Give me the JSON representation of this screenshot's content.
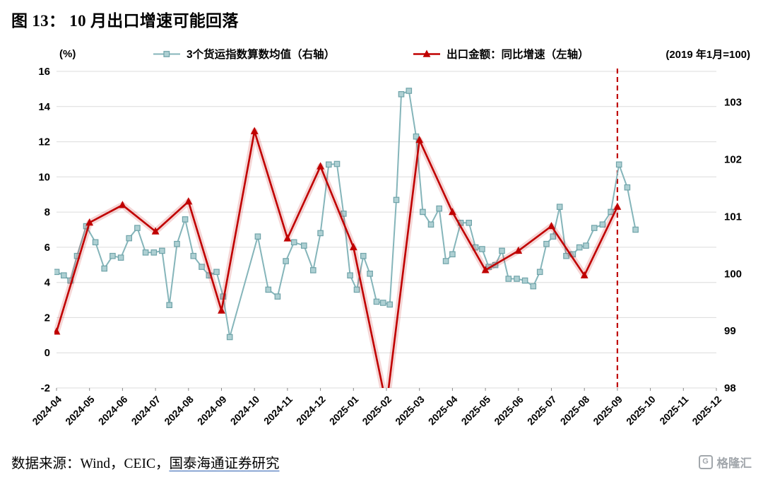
{
  "title": "图 13：  10 月出口增速可能回落",
  "header": {
    "left_unit": "(%)",
    "right_note": "(2019 年1月=100)"
  },
  "footer": {
    "source_prefix": "数据来源：Wind，CEIC，",
    "source_link": "国泰海通证券研究",
    "logo_text": "格隆汇",
    "logo_icon_glyph": "G"
  },
  "colors": {
    "title_rule": "#1f3250",
    "footer_rule": "#2b2b2b",
    "accent_red": "#c00000",
    "teal": "#85b5ba",
    "grid": "#dcdcdc"
  },
  "chart_data": {
    "type": "line",
    "title": "10 月出口增速可能回落",
    "grid_color": "#dcdcdc",
    "x_categories": [
      "2024-04",
      "2024-05",
      "2024-06",
      "2024-07",
      "2024-08",
      "2024-09",
      "2024-10",
      "2024-11",
      "2024-12",
      "2025-01",
      "2025-02",
      "2025-03",
      "2025-04",
      "2025-05",
      "2025-06",
      "2025-07",
      "2025-08",
      "2025-09",
      "2025-10",
      "2025-11",
      "2025-12"
    ],
    "left_axis": {
      "label": "(%)",
      "ticks": [
        16,
        14,
        12,
        10,
        8,
        6,
        4,
        2,
        0,
        -2
      ],
      "range": [
        -2,
        16
      ]
    },
    "right_axis": {
      "label": "(2019年1月=100)",
      "ticks": [
        103,
        102,
        101,
        100,
        99,
        98
      ],
      "range": [
        98,
        103.54
      ]
    },
    "annotation": {
      "dashed_vline_at": "2025-09",
      "x_index": 17,
      "color": "#c00000"
    },
    "series": [
      {
        "name": "3个货运指数算数均值（右轴）",
        "axis": "right",
        "marker": "square",
        "color": "#85b5ba",
        "marker_fill": "#aed0d3",
        "marker_stroke": "#6fa3a9",
        "width": 2,
        "glow": false,
        "points": [
          [
            0,
            100.03
          ],
          [
            0.22,
            99.97
          ],
          [
            0.42,
            99.88
          ],
          [
            0.62,
            100.31
          ],
          [
            0.9,
            100.83
          ],
          [
            1.18,
            100.55
          ],
          [
            1.45,
            100.09
          ],
          [
            1.7,
            100.31
          ],
          [
            1.95,
            100.28
          ],
          [
            2.2,
            100.62
          ],
          [
            2.45,
            100.8
          ],
          [
            2.7,
            100.37
          ],
          [
            2.95,
            100.37
          ],
          [
            3.2,
            100.4
          ],
          [
            3.42,
            99.45
          ],
          [
            3.65,
            100.52
          ],
          [
            3.9,
            100.95
          ],
          [
            4.15,
            100.31
          ],
          [
            4.4,
            100.12
          ],
          [
            4.62,
            99.97
          ],
          [
            4.85,
            100.03
          ],
          [
            5.05,
            99.6
          ],
          [
            5.25,
            98.89
          ],
          [
            6.1,
            100.65
          ],
          [
            6.42,
            99.72
          ],
          [
            6.7,
            99.6
          ],
          [
            6.95,
            100.22
          ],
          [
            7.2,
            100.55
          ],
          [
            7.5,
            100.49
          ],
          [
            7.78,
            100.06
          ],
          [
            8.0,
            100.71
          ],
          [
            8.25,
            101.91
          ],
          [
            8.5,
            101.92
          ],
          [
            8.7,
            101.05
          ],
          [
            8.9,
            99.97
          ],
          [
            9.1,
            99.72
          ],
          [
            9.3,
            100.31
          ],
          [
            9.5,
            100.0
          ],
          [
            9.7,
            99.51
          ],
          [
            9.9,
            99.49
          ],
          [
            10.1,
            99.46
          ],
          [
            10.3,
            101.29
          ],
          [
            10.45,
            103.14
          ],
          [
            10.68,
            103.2
          ],
          [
            10.9,
            102.4
          ],
          [
            11.1,
            101.08
          ],
          [
            11.35,
            100.86
          ],
          [
            11.6,
            101.14
          ],
          [
            11.8,
            100.22
          ],
          [
            12.0,
            100.34
          ],
          [
            12.25,
            100.89
          ],
          [
            12.5,
            100.89
          ],
          [
            12.7,
            100.46
          ],
          [
            12.9,
            100.43
          ],
          [
            13.1,
            100.12
          ],
          [
            13.3,
            100.15
          ],
          [
            13.5,
            100.4
          ],
          [
            13.7,
            99.91
          ],
          [
            13.95,
            99.91
          ],
          [
            14.2,
            99.88
          ],
          [
            14.45,
            99.78
          ],
          [
            14.65,
            100.03
          ],
          [
            14.85,
            100.52
          ],
          [
            15.05,
            100.65
          ],
          [
            15.25,
            101.17
          ],
          [
            15.45,
            100.31
          ],
          [
            15.65,
            100.34
          ],
          [
            15.85,
            100.46
          ],
          [
            16.05,
            100.49
          ],
          [
            16.3,
            100.8
          ],
          [
            16.55,
            100.86
          ],
          [
            16.8,
            101.08
          ],
          [
            17.05,
            101.91
          ],
          [
            17.3,
            101.51
          ],
          [
            17.55,
            100.77
          ]
        ]
      },
      {
        "name": "出口金额：同比增速（左轴）",
        "axis": "left",
        "marker": "triangle",
        "color": "#c00000",
        "width": 2.6,
        "glow": true,
        "points": [
          [
            0,
            1.2
          ],
          [
            1,
            7.4
          ],
          [
            2,
            8.4
          ],
          [
            3,
            6.9
          ],
          [
            4,
            8.6
          ],
          [
            5,
            2.4
          ],
          [
            6,
            12.6
          ],
          [
            7,
            6.5
          ],
          [
            8,
            10.6
          ],
          [
            9,
            6.0
          ],
          [
            10,
            -3.0
          ],
          [
            11,
            12.1
          ],
          [
            12,
            8.0
          ],
          [
            13,
            4.7
          ],
          [
            14,
            5.8
          ],
          [
            15,
            7.2
          ],
          [
            16,
            4.4
          ],
          [
            17,
            8.3
          ]
        ]
      }
    ]
  }
}
